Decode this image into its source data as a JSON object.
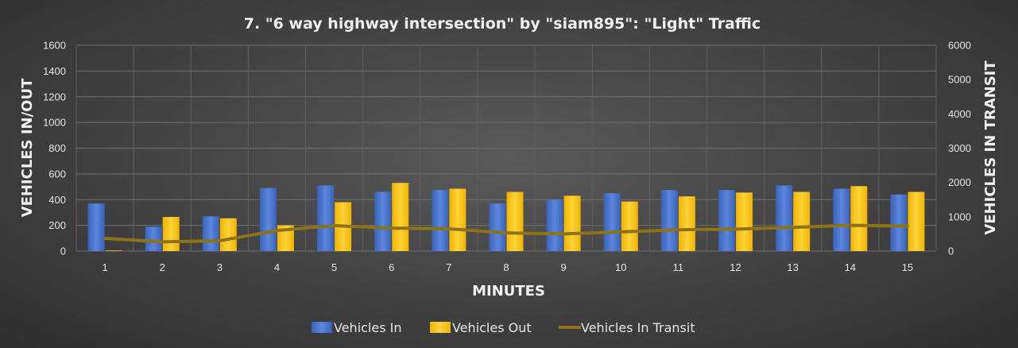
{
  "chart_data": {
    "type": "bar",
    "title": "7. \"6 way highway intersection\" by \"siam895\": \"Light\" Traffic",
    "xlabel": "MINUTES",
    "ylabel": "VEHICLES IN/OUT",
    "y2label": "VEHICLES IN TRANSIT",
    "categories": [
      "1",
      "2",
      "3",
      "4",
      "5",
      "6",
      "7",
      "8",
      "9",
      "10",
      "11",
      "12",
      "13",
      "14",
      "15"
    ],
    "ylim": [
      0,
      1600
    ],
    "y2lim": [
      0,
      6000
    ],
    "yticks": [
      "0",
      "200",
      "400",
      "600",
      "800",
      "1000",
      "1200",
      "1400",
      "1600"
    ],
    "y2ticks": [
      "0",
      "1000",
      "2000",
      "3000",
      "4000",
      "5000",
      "6000"
    ],
    "grid": true,
    "legend_position": "bottom",
    "series": [
      {
        "name": "Vehicles In",
        "type": "bar",
        "axis": "left",
        "color": "#4472c4",
        "values": [
          370,
          190,
          270,
          490,
          510,
          460,
          475,
          370,
          400,
          450,
          475,
          475,
          510,
          485,
          440
        ]
      },
      {
        "name": "Vehicles Out",
        "type": "bar",
        "axis": "left",
        "color": "#ffc000",
        "values": [
          5,
          265,
          255,
          200,
          380,
          530,
          485,
          460,
          430,
          385,
          425,
          455,
          460,
          505,
          460
        ]
      },
      {
        "name": "Vehicles In Transit",
        "type": "line",
        "axis": "right",
        "color": "#8b7316",
        "values": [
          370,
          270,
          300,
          600,
          740,
          670,
          650,
          530,
          500,
          560,
          620,
          640,
          690,
          750,
          730
        ]
      }
    ]
  }
}
